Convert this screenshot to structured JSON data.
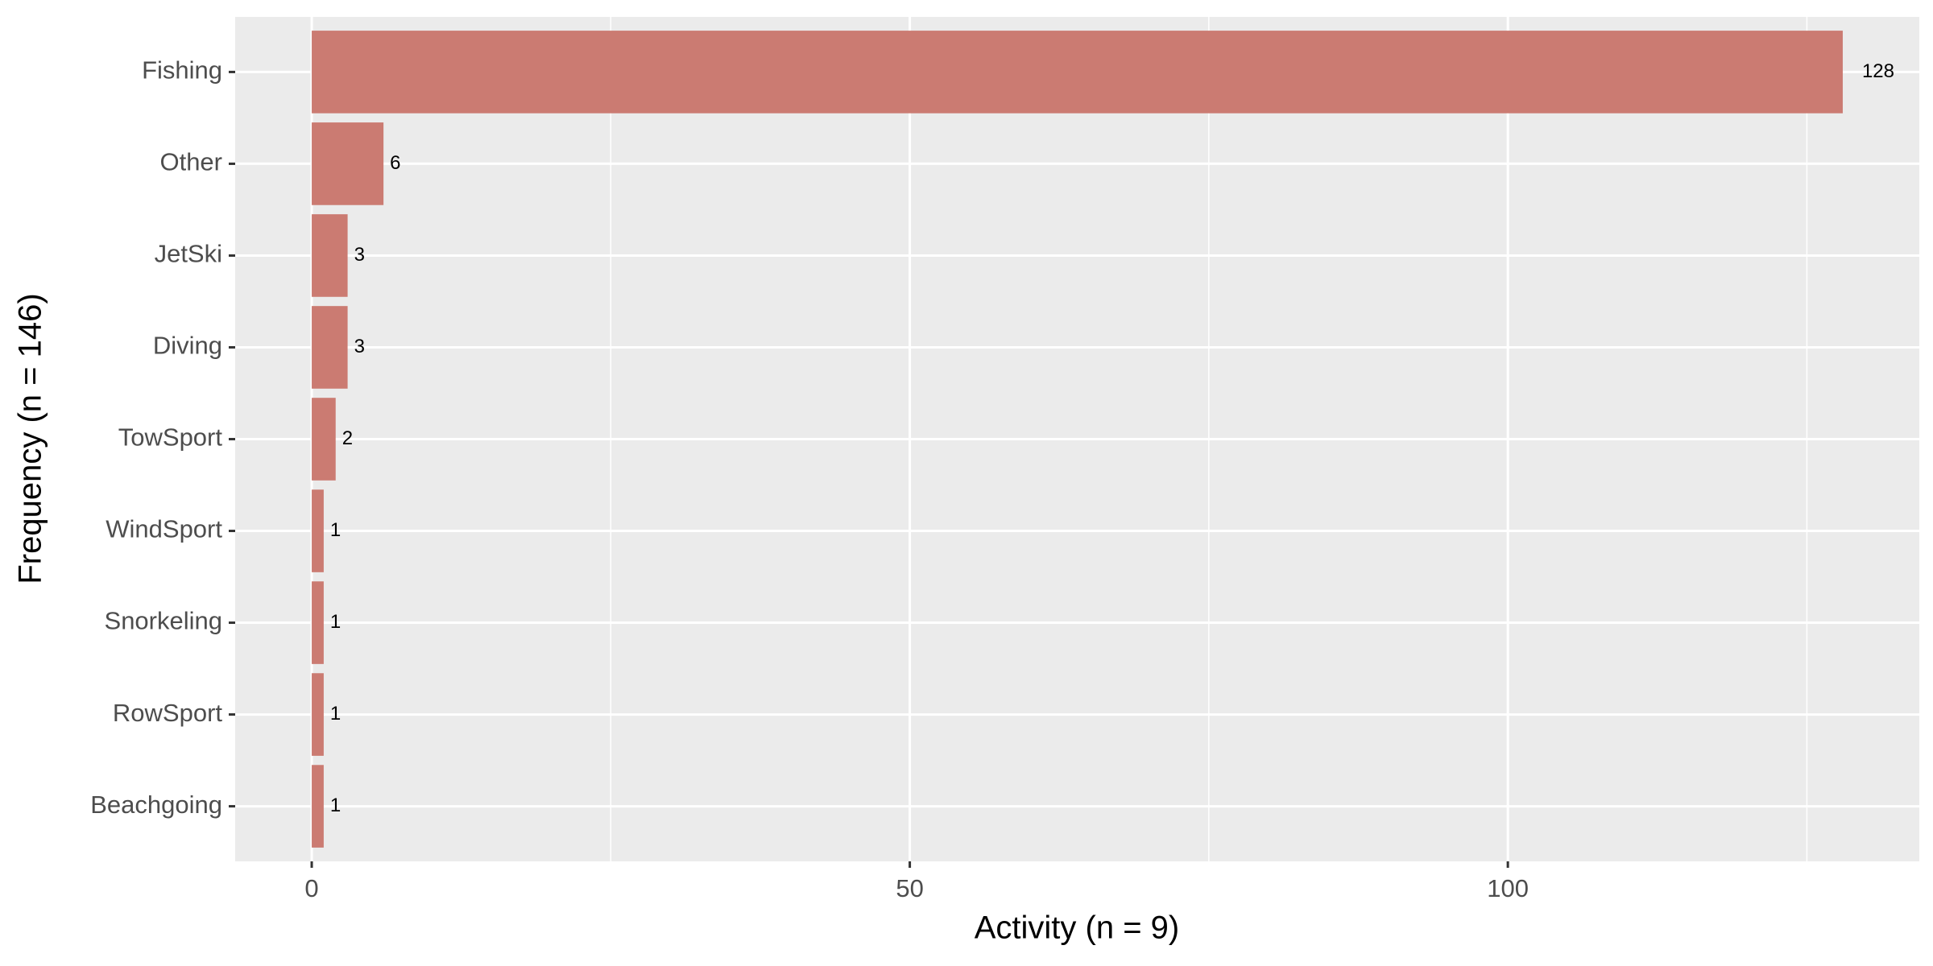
{
  "chart_data": {
    "type": "hbar",
    "x_label": "Activity (n = 9)",
    "y_label": "Frequency (n = 146)",
    "categories": [
      "Fishing",
      "Other",
      "JetSki",
      "Diving",
      "TowSport",
      "WindSport",
      "Snorkeling",
      "RowSport",
      "Beachgoing"
    ],
    "values": [
      128,
      6,
      3,
      3,
      2,
      1,
      1,
      1,
      1
    ],
    "color": "#cb7b72",
    "xlim": [
      -6.4,
      134.4
    ],
    "xticks": [
      0,
      50,
      100
    ],
    "x_minor_ticks": [
      25,
      75,
      125
    ],
    "grid": true
  }
}
